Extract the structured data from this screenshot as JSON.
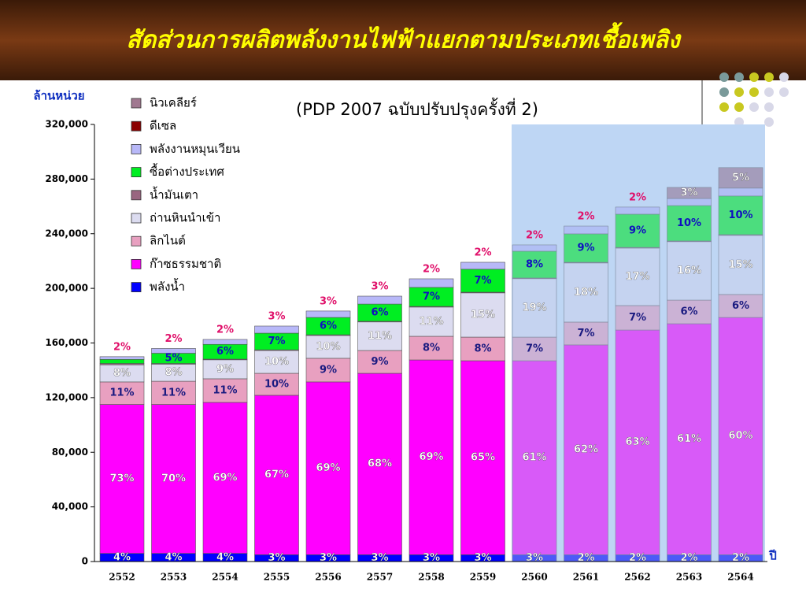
{
  "chart_data": {
    "type": "stacked_bar",
    "title": "สัดส่วนการผลิตพลังงานไฟฟ้าแยกตามประเภทเชื้อเพลิง",
    "subtitle": "(PDP 2007 ฉบับปรับปรุงครั้งที่ 2)",
    "y_label": "ล้านหน่วย",
    "x_label": "ปี",
    "categories": [
      "2552",
      "2553",
      "2554",
      "2555",
      "2556",
      "2557",
      "2558",
      "2559",
      "2560",
      "2561",
      "2562",
      "2563",
      "2564"
    ],
    "ylim": [
      0,
      320000
    ],
    "yticks": [
      0,
      {
        "value": 40000,
        "label": "40,000"
      },
      {
        "value": 80000,
        "label": "80,000"
      },
      {
        "value": 120000,
        "label": "120,000"
      },
      {
        "value": 160000,
        "label": "160,000"
      },
      {
        "value": 200000,
        "label": "200,000"
      },
      {
        "value": 240000,
        "label": "240,000"
      },
      {
        "value": 280000,
        "label": "280,000"
      },
      {
        "value": 320000,
        "label": "320,000"
      }
    ],
    "series": [
      {
        "name": "พลังน้ำ",
        "color": "#0000ff",
        "values": [
          6000,
          6000,
          6000,
          5000,
          5000,
          5000,
          5000,
          5000,
          5000,
          5000,
          5000,
          5000,
          5000
        ],
        "labels": [
          "4%",
          "4%",
          "4%",
          "3%",
          "3%",
          "3%",
          "3%",
          "3%",
          "3%",
          "2%",
          "2%",
          "2%",
          "2%"
        ]
      },
      {
        "name": "ก๊าซธรรมชาติ",
        "color": "#ff00ff",
        "values": [
          109000,
          109000,
          110500,
          116700,
          126500,
          132800,
          142600,
          142000,
          142000,
          153600,
          164500,
          169100,
          173700
        ],
        "labels": [
          "73%",
          "70%",
          "69%",
          "67%",
          "69%",
          "68%",
          "69%",
          "65%",
          "61%",
          "62%",
          "63%",
          "61%",
          "60%"
        ]
      },
      {
        "name": "ลิกไนต์",
        "color": "#e8a0c0",
        "values": [
          16500,
          17000,
          17300,
          16100,
          17300,
          16700,
          17300,
          17300,
          17300,
          16700,
          17900,
          17300,
          16800
        ],
        "labels": [
          "11%",
          "11%",
          "11%",
          "10%",
          "9%",
          "9%",
          "8%",
          "8%",
          "7%",
          "7%",
          "7%",
          "6%",
          "6%"
        ]
      },
      {
        "name": "ถ่านหินนำเข้า",
        "color": "#dcdcf0",
        "values": [
          12500,
          12500,
          13900,
          16700,
          16700,
          20900,
          21400,
          32400,
          42800,
          43300,
          42100,
          42800,
          43300
        ],
        "labels": [
          "8%",
          "8%",
          "9%",
          "10%",
          "10%",
          "11%",
          "11%",
          "15%",
          "19%",
          "18%",
          "17%",
          "16%",
          "15%"
        ]
      },
      {
        "name": "น้ำมันเตา",
        "color": "#996680",
        "values": [
          1000,
          500,
          500,
          500,
          500,
          500,
          500,
          500,
          500,
          500,
          500,
          500,
          500
        ]
      },
      {
        "name": "ซื้อต่างประเทศ",
        "color": "#00ee22",
        "values": [
          3000,
          7500,
          10800,
          12200,
          12700,
          12600,
          13900,
          16800,
          19600,
          20800,
          24300,
          25900,
          28300
        ],
        "labels": [
          null,
          "5%",
          "6%",
          "7%",
          "6%",
          "6%",
          "7%",
          "7%",
          "8%",
          "9%",
          "9%",
          "10%",
          "10%"
        ]
      },
      {
        "name": "พลังงานหมุนเวียน",
        "color": "#b8b8f8",
        "values": [
          2000,
          3500,
          3600,
          5200,
          4700,
          5800,
          6300,
          5100,
          4600,
          5700,
          5200,
          5200,
          5800
        ],
        "labels": [
          "2%",
          "2%",
          "2%",
          "3%",
          "3%",
          "3%",
          "2%",
          "2%",
          "2%",
          "2%",
          "2%",
          null,
          null
        ]
      },
      {
        "name": "ดีเซล",
        "color": "#8b0000",
        "values": [
          0,
          0,
          0,
          0,
          0,
          0,
          0,
          0,
          0,
          0,
          0,
          0,
          0
        ]
      },
      {
        "name": "นิวเคลียร์",
        "color": "#a07890",
        "values": [
          0,
          0,
          0,
          0,
          0,
          0,
          0,
          0,
          0,
          0,
          0,
          8100,
          15000
        ],
        "labels": [
          null,
          null,
          null,
          null,
          null,
          null,
          null,
          null,
          null,
          null,
          null,
          "3%",
          "5%"
        ]
      }
    ]
  }
}
